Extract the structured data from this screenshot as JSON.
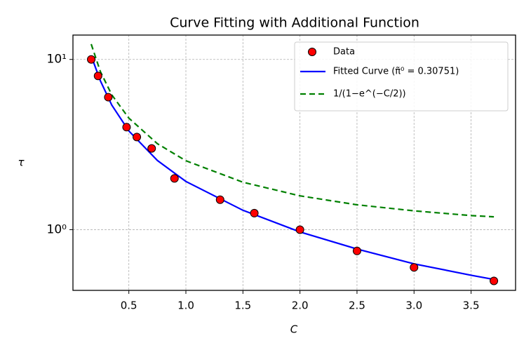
{
  "chart_data": {
    "type": "scatter_line",
    "title": "Curve Fitting with Additional Function",
    "xlabel": "C",
    "ylabel": "τ",
    "log_y": true,
    "grid": true,
    "legend": "upper right",
    "xlim": [
      0.01,
      3.89
    ],
    "ylim": [
      0.44,
      13.9
    ],
    "xticks": [
      0.5,
      {
        "value": 1,
        "label": "1.0"
      },
      1.5,
      {
        "value": 2,
        "label": "2.0"
      },
      2.5,
      {
        "value": 3,
        "label": "3.0"
      },
      3.5
    ],
    "yticks": [
      {
        "value": 1,
        "label": "10⁰"
      },
      {
        "value": 10,
        "label": "10¹"
      }
    ],
    "scatter": {
      "name": "Data",
      "color": "#ff0000",
      "x": [
        0.17,
        0.23,
        0.32,
        0.48,
        0.57,
        0.7,
        0.9,
        1.3,
        1.6,
        2.0,
        2.5,
        3.0,
        3.7
      ],
      "values": [
        10,
        8,
        6,
        4,
        3.5,
        3,
        2,
        1.5,
        1.25,
        1.0,
        0.75,
        0.6,
        0.5
      ]
    },
    "series": [
      {
        "name": "Fitted Curve (π̃⁰ = 0.30751)",
        "color": "#0000ff",
        "dash": false,
        "x": [
          0.17,
          0.25,
          0.35,
          0.5,
          0.75,
          1.0,
          1.5,
          2.0,
          2.5,
          3.0,
          3.5,
          3.7
        ],
        "values": [
          10.5,
          7.5,
          5.4,
          3.8,
          2.55,
          1.92,
          1.3,
          0.97,
          0.77,
          0.63,
          0.54,
          0.51
        ]
      },
      {
        "name": "1/(1−e^(−C/2))",
        "color": "#008000",
        "dash": true,
        "x": [
          0.17,
          0.25,
          0.35,
          0.5,
          0.75,
          1.0,
          1.5,
          2.0,
          2.5,
          3.0,
          3.5,
          3.7
        ],
        "values": [
          12.3,
          8.5,
          6.2,
          4.52,
          3.2,
          2.54,
          1.9,
          1.58,
          1.4,
          1.29,
          1.21,
          1.19
        ]
      }
    ]
  }
}
